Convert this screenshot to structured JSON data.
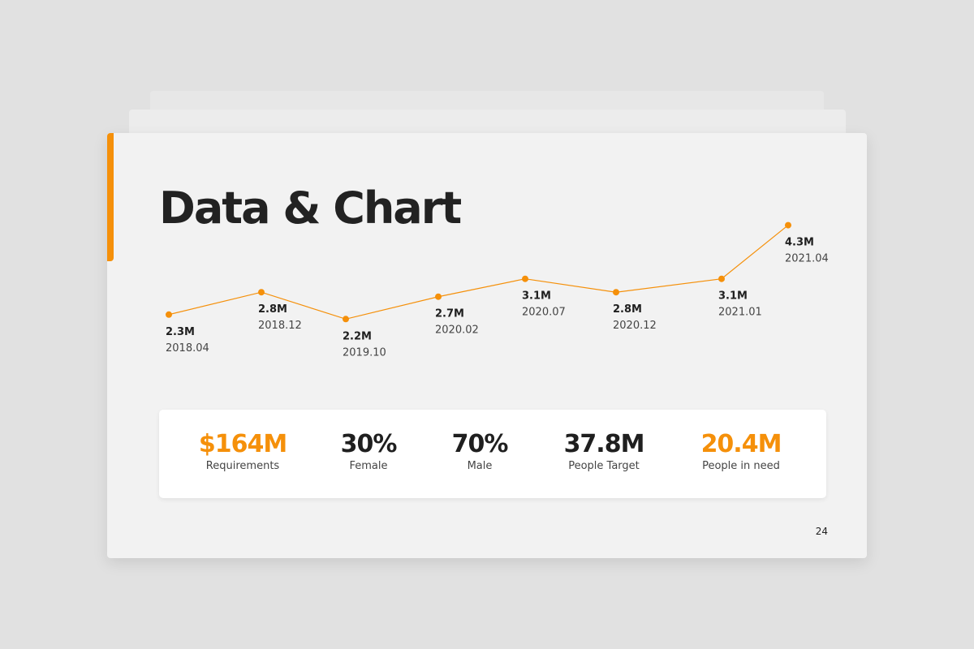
{
  "colors": {
    "accent": "#f5900a",
    "text_dark": "#1f1f1f",
    "text_muted": "#444444"
  },
  "slide": {
    "title": "Data & Chart",
    "page_number": "24"
  },
  "chart_data": {
    "type": "line",
    "x": [
      "2018.04",
      "2018.12",
      "2019.10",
      "2020.02",
      "2020.07",
      "2020.12",
      "2021.01",
      "2021.04"
    ],
    "values": [
      2.3,
      2.8,
      2.2,
      2.7,
      3.1,
      2.8,
      3.1,
      4.3
    ],
    "value_labels": [
      "2.3M",
      "2.8M",
      "2.2M",
      "2.7M",
      "3.1M",
      "2.8M",
      "3.1M",
      "4.3M"
    ],
    "title": "",
    "xlabel": "",
    "ylabel": "",
    "grid": false,
    "legend": "none",
    "line_color": "#f5900a"
  },
  "stats": [
    {
      "value": "$164M",
      "label": "Requirements",
      "highlight": true
    },
    {
      "value": "30%",
      "label": "Female",
      "highlight": false
    },
    {
      "value": "70%",
      "label": "Male",
      "highlight": false
    },
    {
      "value": "37.8M",
      "label": "People Target",
      "highlight": false
    },
    {
      "value": "20.4M",
      "label": "People in need",
      "highlight": true
    }
  ]
}
